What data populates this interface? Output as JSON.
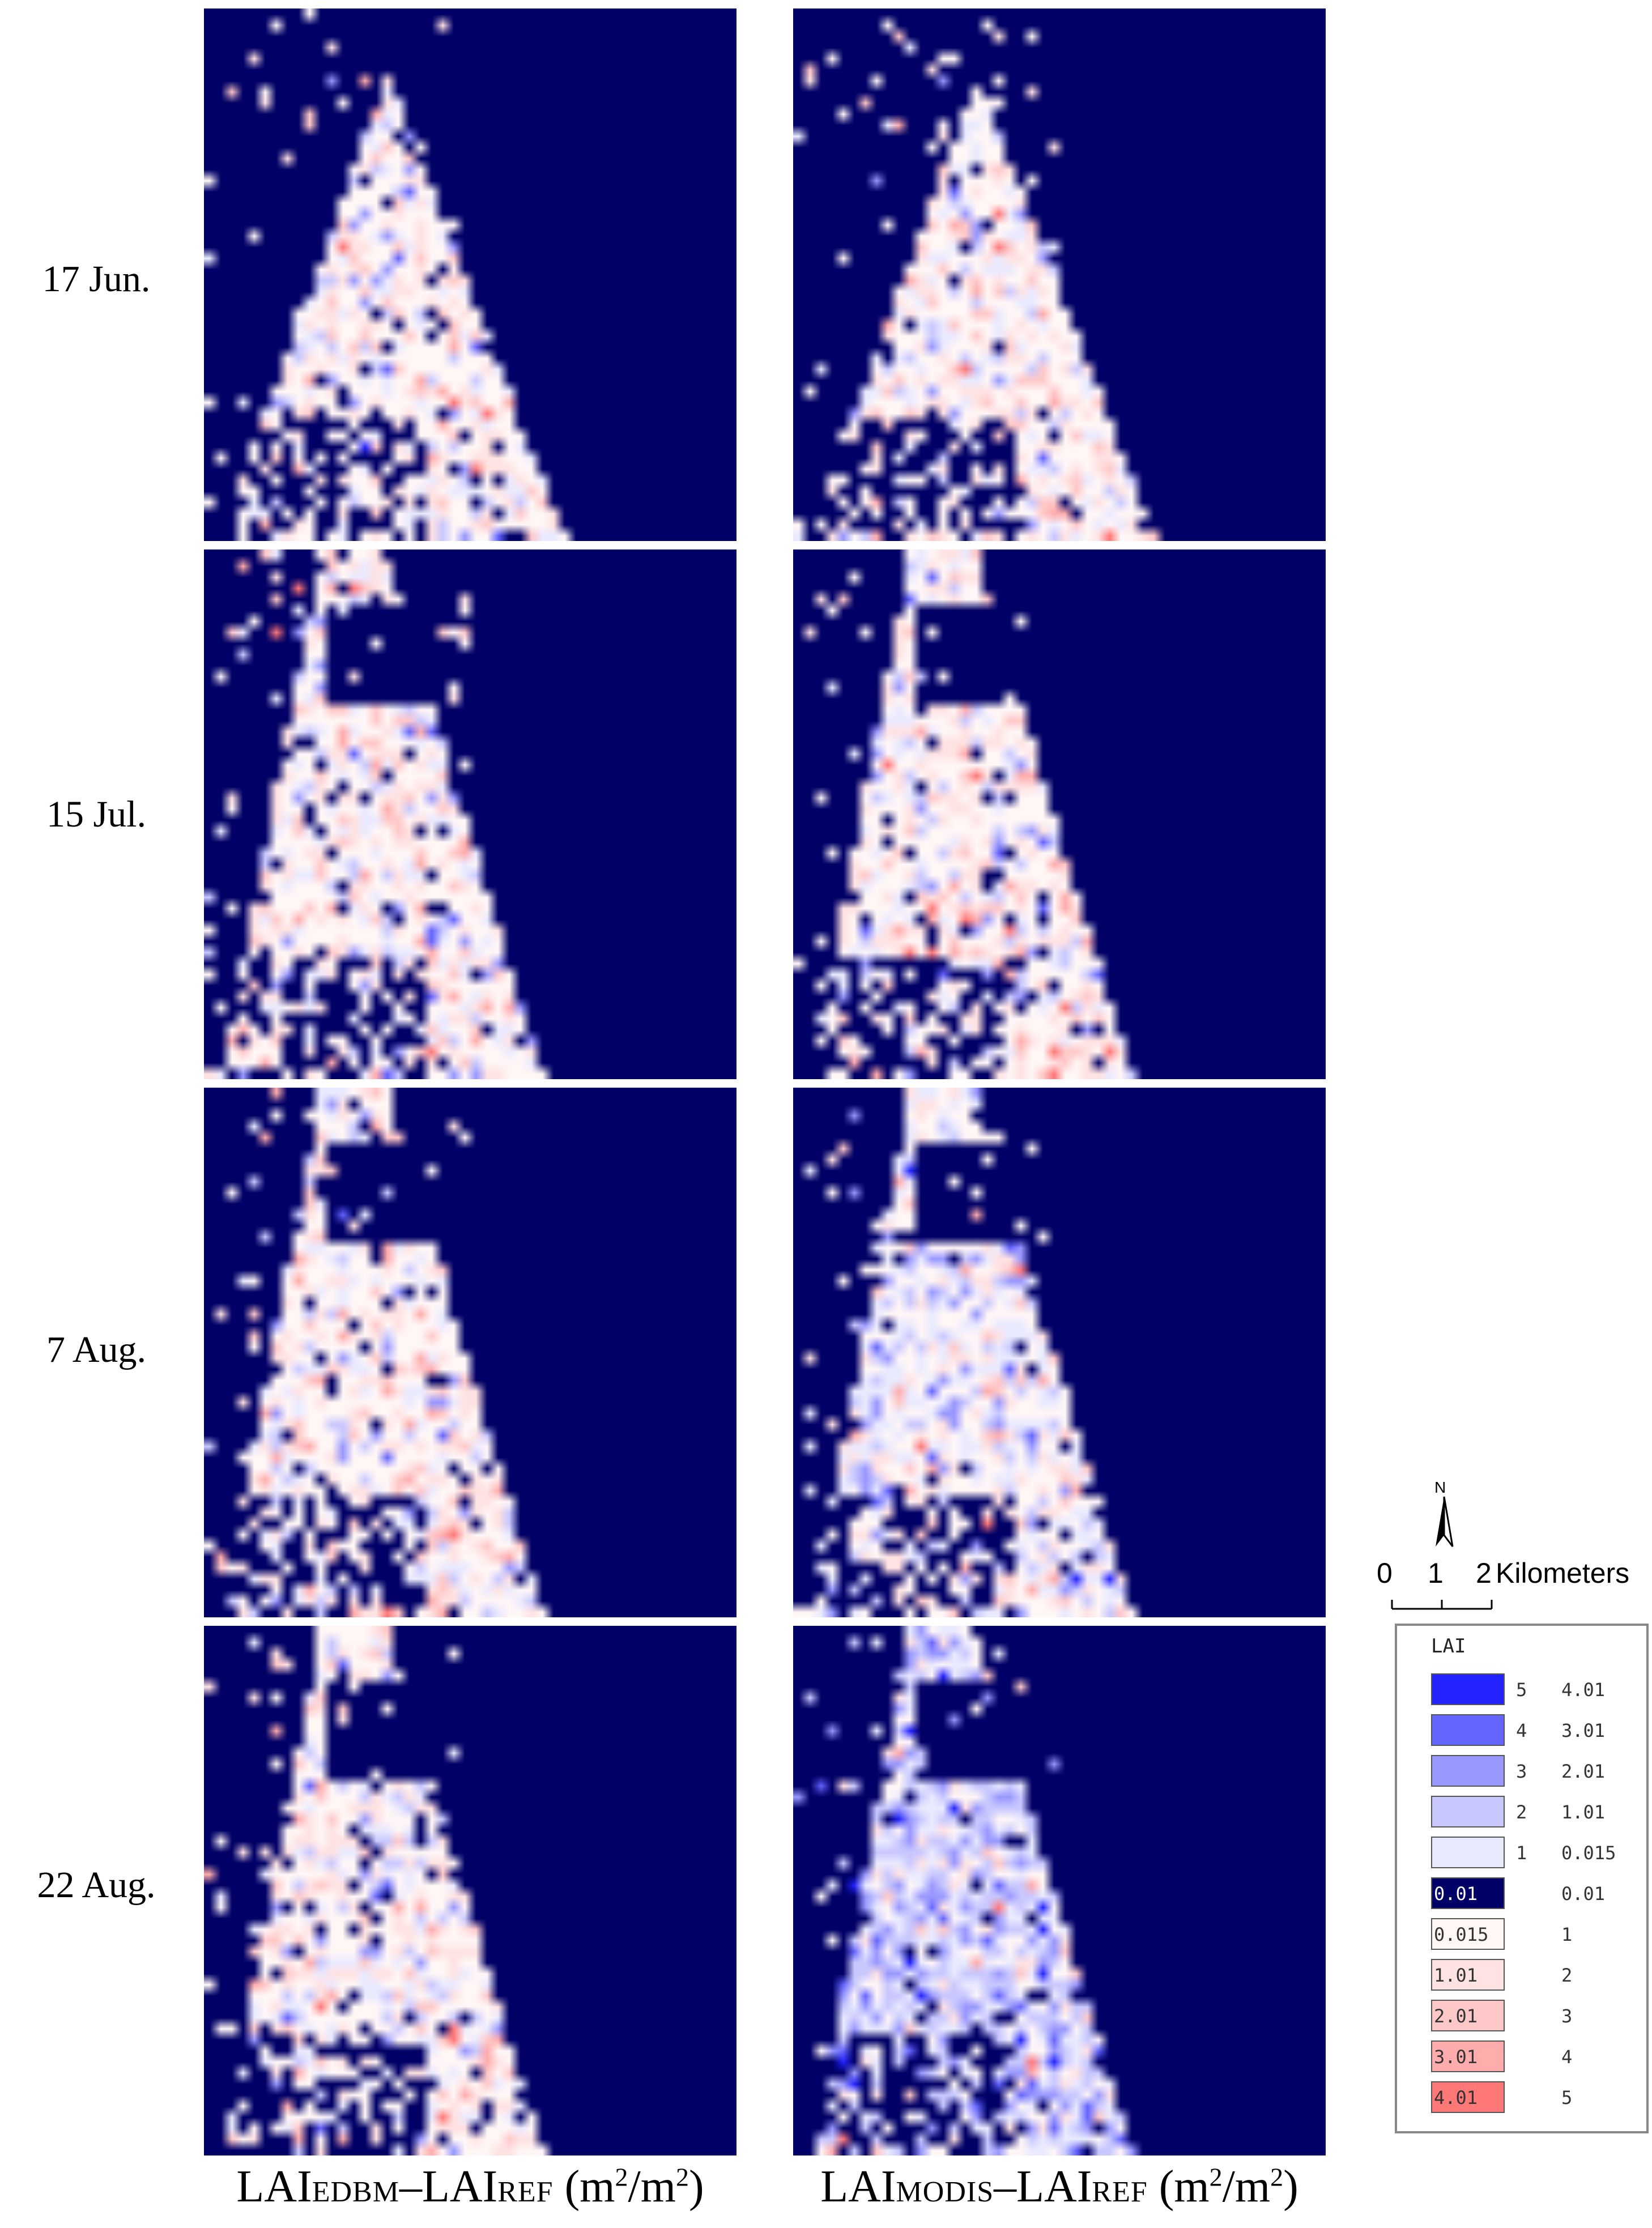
{
  "rows": [
    {
      "label": "17 Jun.",
      "shape": "jun"
    },
    {
      "label": "15 Jul.",
      "shape": "jul"
    },
    {
      "label": "7 Aug.",
      "shape": "aug"
    },
    {
      "label": "22 Aug.",
      "shape": "aug22"
    }
  ],
  "columns": [
    {
      "main": "LAI",
      "sub1": "EDBM",
      "dash": "–",
      "sub2": "REF",
      "unit": "(m",
      "sup1": "2",
      "slash": "/m",
      "sup2": "2",
      "close": ")"
    },
    {
      "main": "LAI",
      "sub1": "MODIS",
      "dash": "–",
      "sub2": "REF",
      "unit": "(m",
      "sup1": "2",
      "slash": "/m",
      "sup2": "2",
      "close": ")"
    }
  ],
  "north_label": "N",
  "scale": {
    "zero": "0",
    "one": "1",
    "two": "2",
    "unit": "Kilometers"
  },
  "legend": {
    "title": "LAI",
    "items": [
      {
        "lo": "5",
        "hi": "4.01",
        "color": "#2323ff"
      },
      {
        "lo": "4",
        "hi": "3.01",
        "color": "#6464ff"
      },
      {
        "lo": "3",
        "hi": "2.01",
        "color": "#9898ff"
      },
      {
        "lo": "2",
        "hi": "1.01",
        "color": "#c8c8ff"
      },
      {
        "lo": "1",
        "hi": "0.015",
        "color": "#eaeaff"
      },
      {
        "lo": "0.01",
        "hi": "0.01",
        "color": "#000066"
      },
      {
        "lo": "0.015",
        "hi": "1",
        "color": "#fff6f6"
      },
      {
        "lo": "1.01",
        "hi": "2",
        "color": "#ffe2e2"
      },
      {
        "lo": "2.01",
        "hi": "3",
        "color": "#ffc8c8"
      },
      {
        "lo": "3.01",
        "hi": "4",
        "color": "#ffacac"
      },
      {
        "lo": "4.01",
        "hi": "5",
        "color": "#ff7878"
      }
    ]
  },
  "colors": {
    "background": "#000066",
    "positive": "#ff7878",
    "negative": "#2323ff"
  }
}
